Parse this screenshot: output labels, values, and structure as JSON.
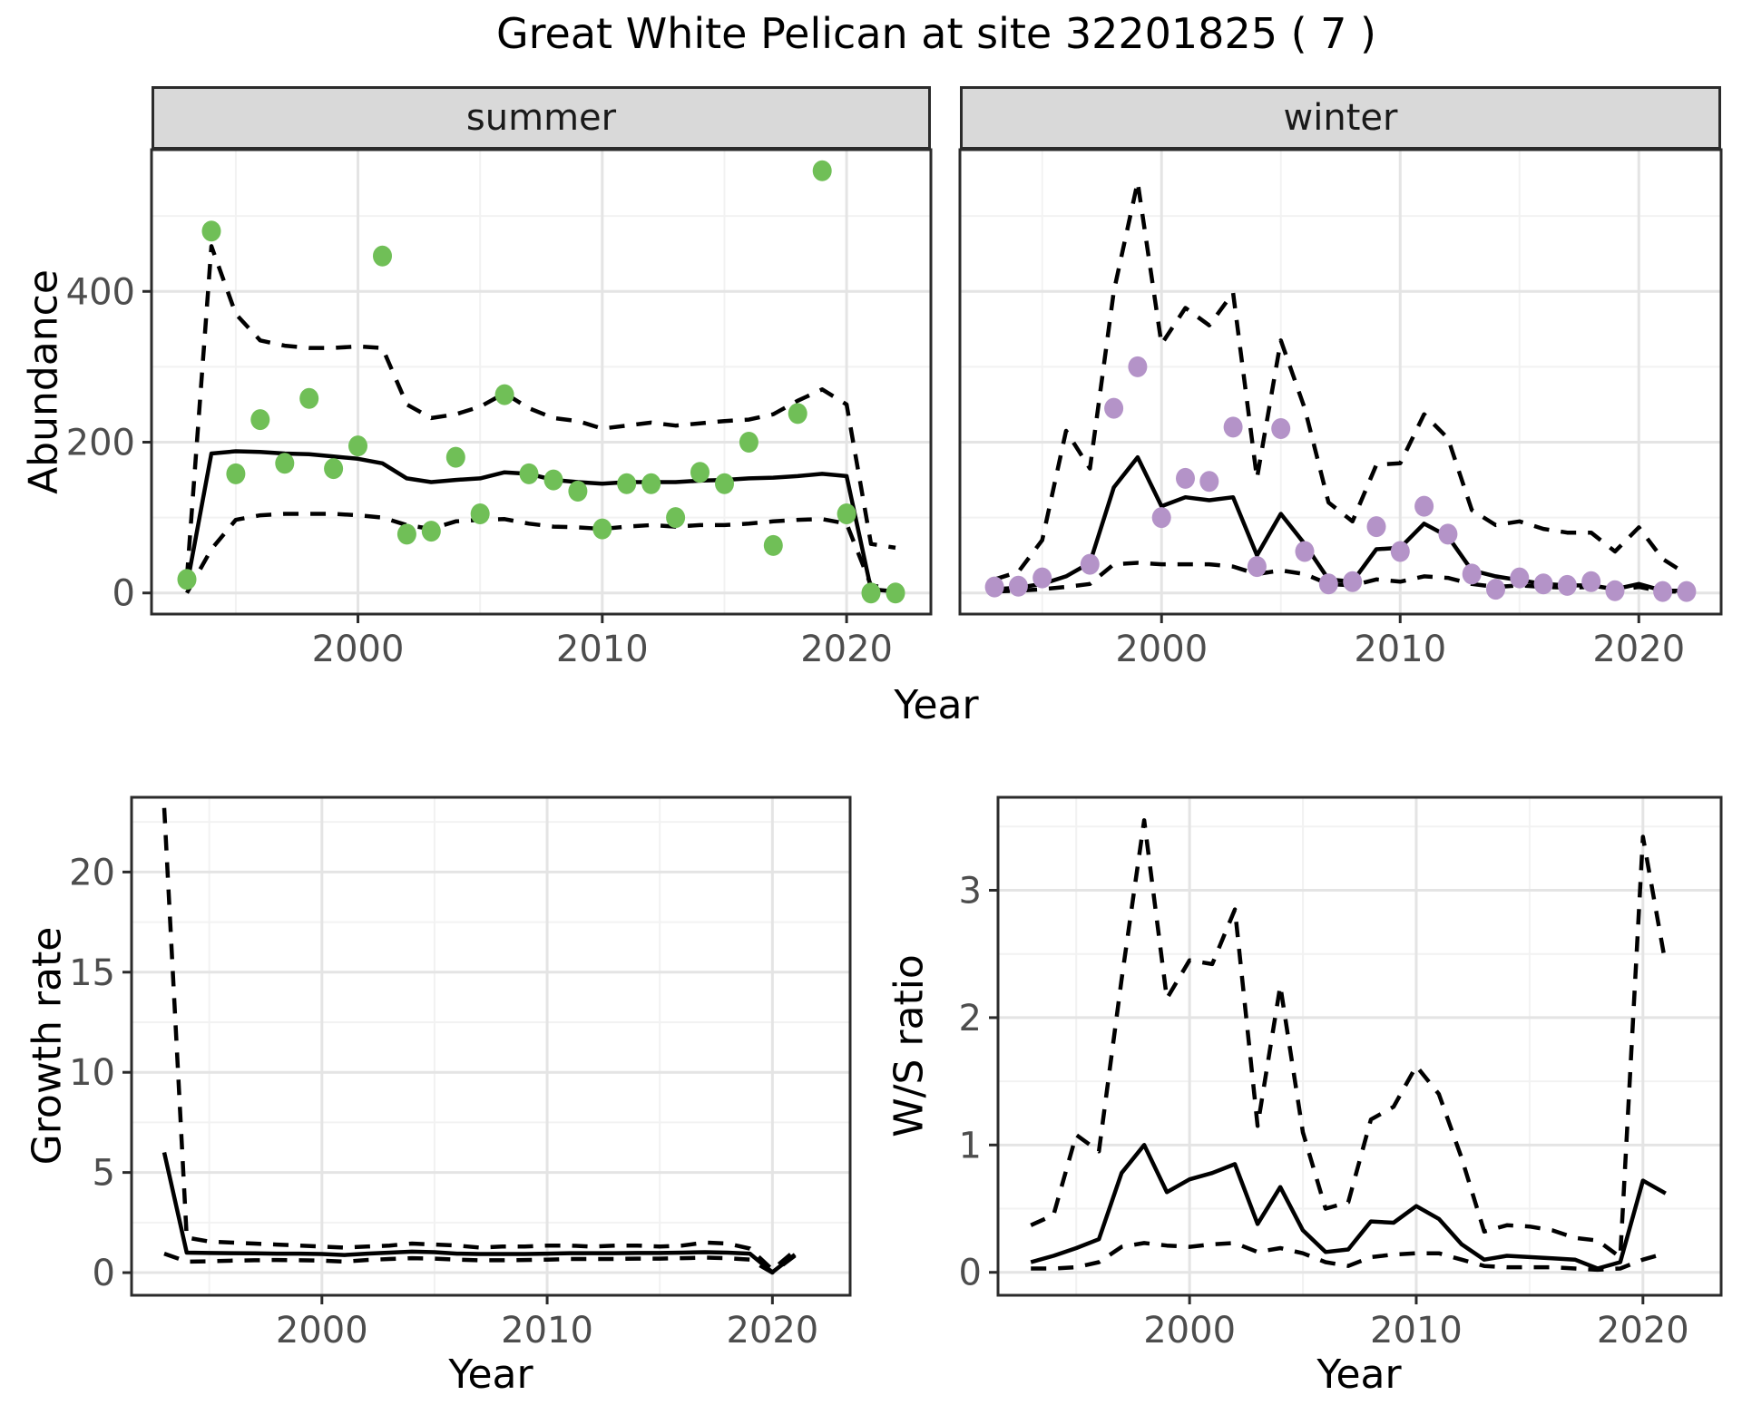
{
  "title": "Great White Pelican at site 32201825 ( 7 )",
  "colors": {
    "summer_point": "#70BF57",
    "winter_point": "#B493C8",
    "line": "#000000",
    "tick_label": "#4D4D4D",
    "strip_bg": "#D9D9D9",
    "panel_border": "#2B2B2B",
    "grid_major": "#E4E4E4",
    "grid_minor": "#F2F2F2"
  },
  "chart_data": [
    {
      "id": "abundance-summer",
      "type": "scatter",
      "facet_label": "summer",
      "xlabel": "Year",
      "ylabel": "Abundance",
      "xlim": [
        1991.55,
        2023.45
      ],
      "ylim": [
        -28,
        588
      ],
      "xticks": [
        2000,
        2010,
        2020
      ],
      "xminor": [
        1995,
        2005,
        2015
      ],
      "yticks": [
        0,
        200,
        400
      ],
      "yminor": [
        100,
        300,
        500
      ],
      "show_ytick_labels": true,
      "x": [
        1993,
        1994,
        1995,
        1996,
        1997,
        1998,
        1999,
        2000,
        2001,
        2002,
        2003,
        2004,
        2005,
        2006,
        2007,
        2008,
        2009,
        2010,
        2011,
        2012,
        2013,
        2014,
        2015,
        2016,
        2017,
        2018,
        2019,
        2020,
        2021,
        2022
      ],
      "series": [
        {
          "name": "observed",
          "style": "points",
          "color": "#70BF57",
          "values": [
            18,
            480,
            158,
            230,
            172,
            258,
            165,
            195,
            447,
            78,
            82,
            180,
            105,
            263,
            158,
            150,
            135,
            85,
            145,
            145,
            100,
            160,
            145,
            200,
            63,
            238,
            560,
            105,
            0,
            0
          ]
        },
        {
          "name": "fit",
          "style": "solid",
          "values": [
            10,
            185,
            188,
            187,
            185,
            184,
            181,
            178,
            172,
            152,
            147,
            150,
            152,
            160,
            158,
            150,
            147,
            145,
            147,
            147,
            147,
            149,
            150,
            152,
            153,
            155,
            158,
            155,
            5,
            2
          ]
        },
        {
          "name": "ci-upper",
          "style": "dashed",
          "values": [
            20,
            460,
            370,
            335,
            328,
            325,
            325,
            327,
            325,
            250,
            232,
            237,
            247,
            265,
            245,
            232,
            228,
            218,
            222,
            226,
            222,
            225,
            228,
            230,
            237,
            255,
            270,
            250,
            65,
            60
          ]
        },
        {
          "name": "ci-lower",
          "style": "dashed",
          "values": [
            0,
            58,
            97,
            103,
            105,
            105,
            105,
            103,
            100,
            90,
            85,
            95,
            97,
            98,
            92,
            88,
            87,
            85,
            88,
            90,
            88,
            90,
            90,
            92,
            95,
            97,
            98,
            92,
            10,
            5
          ]
        }
      ]
    },
    {
      "id": "abundance-winter",
      "type": "scatter",
      "facet_label": "winter",
      "xlabel": "Year",
      "ylabel": "Abundance",
      "xlim": [
        1991.55,
        2023.45
      ],
      "ylim": [
        -28,
        588
      ],
      "xticks": [
        2000,
        2010,
        2020
      ],
      "xminor": [
        1995,
        2005,
        2015
      ],
      "yticks": [
        0,
        200,
        400
      ],
      "yminor": [
        100,
        300,
        500
      ],
      "show_ytick_labels": false,
      "x": [
        1993,
        1994,
        1995,
        1996,
        1997,
        1998,
        1999,
        2000,
        2001,
        2002,
        2003,
        2004,
        2005,
        2006,
        2007,
        2008,
        2009,
        2010,
        2011,
        2012,
        2013,
        2014,
        2015,
        2016,
        2017,
        2018,
        2019,
        2020,
        2021,
        2022
      ],
      "series": [
        {
          "name": "observed",
          "style": "points",
          "color": "#B493C8",
          "values": [
            8,
            9,
            20,
            null,
            38,
            245,
            300,
            100,
            152,
            148,
            220,
            35,
            218,
            55,
            12,
            15,
            88,
            55,
            115,
            78,
            25,
            5,
            20,
            12,
            10,
            15,
            3,
            null,
            2,
            2
          ]
        },
        {
          "name": "fit",
          "style": "solid",
          "values": [
            5,
            7,
            12,
            22,
            40,
            140,
            180,
            115,
            127,
            123,
            127,
            50,
            105,
            65,
            18,
            15,
            58,
            60,
            92,
            75,
            30,
            22,
            17,
            12,
            10,
            10,
            5,
            12,
            3,
            3
          ]
        },
        {
          "name": "ci-upper",
          "style": "dashed",
          "values": [
            18,
            28,
            70,
            215,
            165,
            400,
            545,
            330,
            378,
            355,
            398,
            152,
            335,
            245,
            120,
            95,
            170,
            172,
            237,
            205,
            110,
            90,
            95,
            85,
            80,
            80,
            55,
            87,
            45,
            25
          ]
        },
        {
          "name": "ci-lower",
          "style": "dashed",
          "values": [
            2,
            3,
            5,
            8,
            12,
            38,
            40,
            38,
            38,
            38,
            35,
            25,
            30,
            25,
            12,
            10,
            18,
            15,
            22,
            20,
            12,
            8,
            10,
            8,
            7,
            8,
            4,
            8,
            2,
            2
          ]
        }
      ]
    },
    {
      "id": "growth-rate",
      "type": "line",
      "facet_label": "",
      "xlabel": "Year",
      "ylabel": "Growth rate",
      "xlim": [
        1991.55,
        2023.45
      ],
      "ylim": [
        -1.13,
        23.73
      ],
      "xticks": [
        2000,
        2010,
        2020
      ],
      "xminor": [
        1995,
        2005,
        2015
      ],
      "yticks": [
        0,
        5,
        10,
        15,
        20
      ],
      "yminor": [
        2.5,
        7.5,
        12.5,
        17.5,
        22.5
      ],
      "show_ytick_labels": true,
      "x": [
        1993,
        1994,
        1995,
        1996,
        1997,
        1998,
        1999,
        2000,
        2001,
        2002,
        2003,
        2004,
        2005,
        2006,
        2007,
        2008,
        2009,
        2010,
        2011,
        2012,
        2013,
        2014,
        2015,
        2016,
        2017,
        2018,
        2019,
        2020,
        2021
      ],
      "series": [
        {
          "name": "fit",
          "style": "solid",
          "values": [
            6.0,
            1.0,
            0.98,
            0.97,
            0.96,
            0.95,
            0.95,
            0.93,
            0.88,
            0.95,
            1.0,
            1.05,
            1.02,
            0.95,
            0.93,
            0.93,
            0.93,
            0.95,
            0.97,
            0.97,
            0.97,
            0.98,
            0.98,
            1.0,
            1.02,
            1.0,
            0.95,
            0.02,
            0.9
          ]
        },
        {
          "name": "ci-upper",
          "style": "dashed",
          "values": [
            23.2,
            1.75,
            1.55,
            1.5,
            1.45,
            1.4,
            1.35,
            1.3,
            1.25,
            1.3,
            1.35,
            1.45,
            1.4,
            1.35,
            1.25,
            1.3,
            1.3,
            1.35,
            1.35,
            1.3,
            1.35,
            1.35,
            1.3,
            1.35,
            1.5,
            1.45,
            1.2,
            0.15,
            1.1
          ]
        },
        {
          "name": "ci-lower",
          "style": "dashed",
          "values": [
            0.95,
            0.55,
            0.57,
            0.6,
            0.62,
            0.63,
            0.62,
            0.6,
            0.55,
            0.63,
            0.68,
            0.72,
            0.7,
            0.65,
            0.62,
            0.62,
            0.63,
            0.65,
            0.68,
            0.68,
            0.68,
            0.7,
            0.7,
            0.72,
            0.75,
            0.72,
            0.65,
            0.0,
            0.85
          ]
        }
      ]
    },
    {
      "id": "ws-ratio",
      "type": "line",
      "facet_label": "",
      "xlabel": "Year",
      "ylabel": "W/S ratio",
      "xlim": [
        1991.55,
        2023.45
      ],
      "ylim": [
        -0.18,
        3.73
      ],
      "xticks": [
        2000,
        2010,
        2020
      ],
      "xminor": [
        1995,
        2005,
        2015
      ],
      "yticks": [
        0,
        1,
        2,
        3
      ],
      "yminor": [
        0.5,
        1.5,
        2.5,
        3.5
      ],
      "show_ytick_labels": true,
      "x": [
        1993,
        1994,
        1995,
        1996,
        1997,
        1998,
        1999,
        2000,
        2001,
        2002,
        2003,
        2004,
        2005,
        2006,
        2007,
        2008,
        2009,
        2010,
        2011,
        2012,
        2013,
        2014,
        2015,
        2016,
        2017,
        2018,
        2019,
        2020,
        2021
      ],
      "series": [
        {
          "name": "fit",
          "style": "solid",
          "values": [
            0.08,
            0.13,
            0.19,
            0.26,
            0.78,
            1.0,
            0.63,
            0.73,
            0.78,
            0.85,
            0.38,
            0.67,
            0.33,
            0.16,
            0.18,
            0.4,
            0.39,
            0.52,
            0.42,
            0.22,
            0.1,
            0.13,
            0.12,
            0.11,
            0.1,
            0.03,
            0.08,
            0.72,
            0.62
          ]
        },
        {
          "name": "ci-upper",
          "style": "dashed",
          "values": [
            0.37,
            0.45,
            1.08,
            0.95,
            2.3,
            3.55,
            2.15,
            2.45,
            2.42,
            2.85,
            1.15,
            2.25,
            1.1,
            0.5,
            0.55,
            1.2,
            1.3,
            1.62,
            1.4,
            0.9,
            0.32,
            0.37,
            0.36,
            0.33,
            0.27,
            0.25,
            0.12,
            3.42,
            2.42
          ]
        },
        {
          "name": "ci-lower",
          "style": "dashed",
          "values": [
            0.03,
            0.03,
            0.04,
            0.08,
            0.2,
            0.23,
            0.21,
            0.2,
            0.22,
            0.23,
            0.16,
            0.19,
            0.15,
            0.08,
            0.05,
            0.12,
            0.14,
            0.15,
            0.15,
            0.1,
            0.05,
            0.04,
            0.04,
            0.04,
            0.03,
            0.02,
            0.03,
            0.1,
            0.15
          ]
        }
      ]
    }
  ]
}
